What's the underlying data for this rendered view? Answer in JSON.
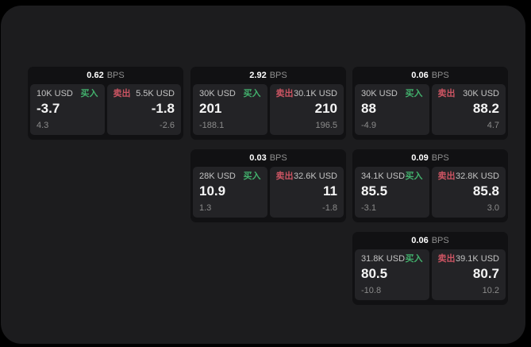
{
  "labels": {
    "buy": "买入",
    "sell": "卖出",
    "bps_unit": "BPS"
  },
  "colors": {
    "background": "#000000",
    "panel_bg": "#1c1c1e",
    "card_bg": "#111113",
    "subcard_bg": "#232326",
    "buy_accent": "#42b06c",
    "sell_accent": "#cb5462"
  },
  "cards": [
    {
      "bps": "0.62",
      "row": 0,
      "col": 0,
      "buy": {
        "amount": "10K USD",
        "price": "-3.7",
        "delta": "4.3"
      },
      "sell": {
        "amount": "5.5K USD",
        "price": "-1.8",
        "delta": "-2.6"
      }
    },
    {
      "bps": "2.92",
      "row": 0,
      "col": 1,
      "buy": {
        "amount": "30K USD",
        "price": "201",
        "delta": "-188.1"
      },
      "sell": {
        "amount": "30.1K USD",
        "price": "210",
        "delta": "196.5"
      }
    },
    {
      "bps": "0.06",
      "row": 0,
      "col": 2,
      "buy": {
        "amount": "30K USD",
        "price": "88",
        "delta": "-4.9"
      },
      "sell": {
        "amount": "30K USD",
        "price": "88.2",
        "delta": "4.7"
      }
    },
    {
      "bps": "0.03",
      "row": 1,
      "col": 1,
      "buy": {
        "amount": "28K USD",
        "price": "10.9",
        "delta": "1.3"
      },
      "sell": {
        "amount": "32.6K USD",
        "price": "11",
        "delta": "-1.8"
      }
    },
    {
      "bps": "0.09",
      "row": 1,
      "col": 2,
      "buy": {
        "amount": "34.1K USD",
        "price": "85.5",
        "delta": "-3.1"
      },
      "sell": {
        "amount": "32.8K USD",
        "price": "85.8",
        "delta": "3.0"
      }
    },
    {
      "bps": "0.06",
      "row": 2,
      "col": 2,
      "buy": {
        "amount": "31.8K USD",
        "price": "80.5",
        "delta": "-10.8"
      },
      "sell": {
        "amount": "39.1K USD",
        "price": "80.7",
        "delta": "10.2"
      }
    }
  ]
}
